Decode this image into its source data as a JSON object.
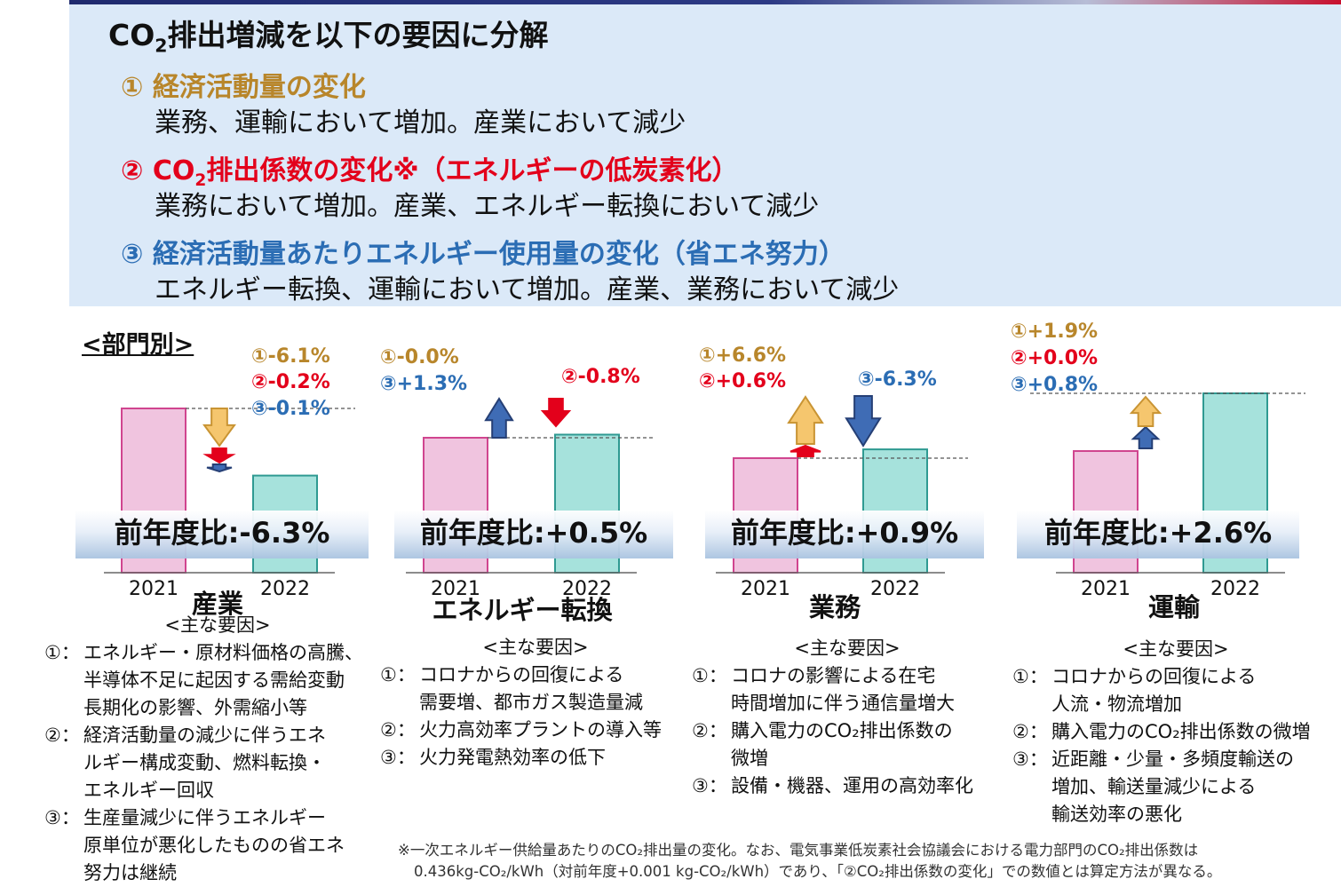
{
  "summary": {
    "title_pre": "CO",
    "title_sub": "2",
    "title_post": "排出増減を以下の要因に分解",
    "factors": [
      {
        "head_pre": "① 経済活動量の変化",
        "head_sub": "",
        "head_post": "",
        "color": "#b8862b",
        "text": "業務、運輸において増加。産業において減少"
      },
      {
        "head_pre": "② CO",
        "head_sub": "2",
        "head_post": "排出係数の変化※（エネルギーの低炭素化）",
        "color": "#e3001b",
        "text": "業務において増加。産業、エネルギー転換において減少"
      },
      {
        "head_pre": "③ 経済活動量あたりエネルギー使用量の変化（省エネ努力）",
        "head_sub": "",
        "head_post": "",
        "color": "#2b6db4",
        "text": "エネルギー転換、運輸において増加。産業、業務において減少"
      }
    ]
  },
  "dept_heading": "<部門別>",
  "colors": {
    "bar_2021": "#f0c4df",
    "bar_2021_border": "#d0458f",
    "bar_2022": "#a6e2dc",
    "bar_2022_border": "#2f9a92",
    "f1": "#b8862b",
    "f1_arrow": "#f5c66e",
    "f1_arrow_border": "#c99433",
    "f2": "#e3001b",
    "f2_arrow": "#e3001b",
    "f3": "#2b6db4",
    "f3_arrow": "#3f6cb5",
    "f3_arrow_border": "#253f75"
  },
  "chart_data": [
    {
      "type": "bar",
      "sector": "産業",
      "categories": [
        "2021",
        "2022"
      ],
      "values": [
        100,
        93.7
      ],
      "factors": [
        "①-6.1%",
        "②-0.2%",
        "③-0.1%"
      ],
      "factor_values": [
        -6.1,
        -0.2,
        -0.1
      ],
      "yoy": "前年度比:-6.3%"
    },
    {
      "type": "bar",
      "sector": "エネルギー転換",
      "categories": [
        "2021",
        "2022"
      ],
      "values": [
        100,
        100.5
      ],
      "factors": [
        "①-0.0%",
        "③+1.3%",
        "②-0.8%"
      ],
      "factor_values": [
        -0.0,
        1.3,
        -0.8
      ],
      "yoy": "前年度比:+0.5%"
    },
    {
      "type": "bar",
      "sector": "業務",
      "categories": [
        "2021",
        "2022"
      ],
      "values": [
        100,
        100.9
      ],
      "factors": [
        "①+6.6%",
        "②+0.6%",
        "③-6.3%"
      ],
      "factor_values": [
        6.6,
        0.6,
        -6.3
      ],
      "yoy": "前年度比:+0.9%"
    },
    {
      "type": "bar",
      "sector": "運輸",
      "categories": [
        "2021",
        "2022"
      ],
      "values": [
        100,
        102.6
      ],
      "factors": [
        "①+1.9%",
        "②+0.0%",
        "③+0.8%"
      ],
      "factor_values": [
        1.9,
        0.0,
        0.8
      ],
      "yoy": "前年度比:+2.6%"
    }
  ],
  "reasons": [
    {
      "title": "<主な要因>",
      "items": [
        {
          "num": "①：",
          "lines": [
            "エネルギー・原材料価格の高騰、",
            "半導体不足に起因する需給変動",
            "長期化の影響、外需縮小等"
          ]
        },
        {
          "num": "②：",
          "lines": [
            "経済活動量の減少に伴うエネ",
            "ルギー構成変動、燃料転換・",
            "エネルギー回収"
          ]
        },
        {
          "num": "③：",
          "lines": [
            "生産量減少に伴うエネルギー",
            "原単位が悪化したものの省エネ",
            "努力は継続"
          ]
        }
      ]
    },
    {
      "title": "<主な要因>",
      "items": [
        {
          "num": "①：",
          "lines": [
            "コロナからの回復による",
            "需要増、都市ガス製造量減"
          ]
        },
        {
          "num": "②：",
          "lines": [
            "火力高効率プラントの導入等"
          ]
        },
        {
          "num": "③：",
          "lines": [
            "火力発電熱効率の低下"
          ]
        }
      ]
    },
    {
      "title": "<主な要因>",
      "items": [
        {
          "num": "①：",
          "lines": [
            "コロナの影響による在宅",
            "時間増加に伴う通信量増大"
          ]
        },
        {
          "num": "②：",
          "lines": [
            "購入電力のCO₂排出係数の",
            "微増"
          ]
        },
        {
          "num": "③：",
          "lines": [
            "設備・機器、運用の高効率化"
          ]
        }
      ]
    },
    {
      "title": "<主な要因>",
      "items": [
        {
          "num": "①：",
          "lines": [
            "コロナからの回復による",
            "人流・物流増加"
          ]
        },
        {
          "num": "②：",
          "lines": [
            "購入電力のCO₂排出係数の微増"
          ]
        },
        {
          "num": "③：",
          "lines": [
            "近距離・少量・多頻度輸送の",
            "増加、輸送量減少による",
            "輸送効率の悪化"
          ]
        }
      ]
    }
  ],
  "note": {
    "line1": "※一次エネルギー供給量あたりのCO₂排出量の変化。なお、電気事業低炭素社会協議会における電力部門のCO₂排出係数は",
    "line2": "0.436kg-CO₂/kWh（対前年度+0.001 kg-CO₂/kWh）であり、「②CO₂排出係数の変化」での数値とは算定方法が異なる。"
  }
}
